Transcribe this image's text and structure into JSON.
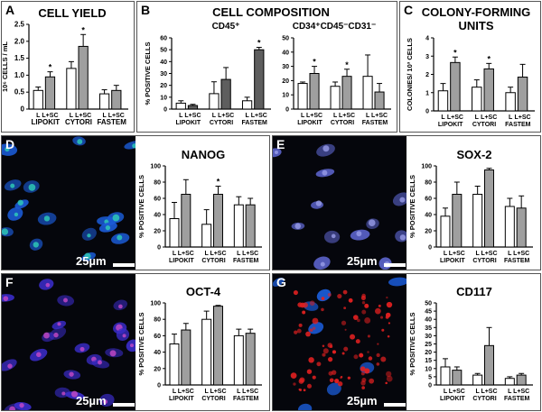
{
  "chart_data": [
    {
      "id": "A",
      "type": "bar",
      "title": "CELL YIELD",
      "ylabel": "10⁶ CELLS / mL",
      "ylim": [
        0,
        2.5
      ],
      "yticks": [
        0,
        0.5,
        1.0,
        1.5,
        2.0,
        2.5
      ],
      "groups": [
        "LIPOKIT",
        "CYTORI",
        "FASTEM"
      ],
      "series": [
        {
          "name": "L",
          "values": [
            0.55,
            1.2,
            0.45
          ],
          "err": [
            0.1,
            0.2,
            0.12
          ]
        },
        {
          "name": "L+SC",
          "values": [
            0.95,
            1.85,
            0.55
          ],
          "err": [
            0.15,
            0.35,
            0.15
          ]
        }
      ],
      "significant": [
        [
          false,
          true
        ],
        [
          false,
          true
        ],
        [
          false,
          false
        ]
      ]
    },
    {
      "id": "B1",
      "type": "bar",
      "title": "CD45⁺",
      "ylabel": "% POSITIVE CELLS",
      "ylim": [
        0,
        60
      ],
      "yticks": [
        0,
        10,
        20,
        30,
        40,
        50,
        60
      ],
      "groups": [
        "LIPOKIT",
        "CYTORI",
        "FASTEM"
      ],
      "series": [
        {
          "name": "L",
          "values": [
            5,
            13,
            7
          ],
          "err": [
            2,
            10,
            3
          ]
        },
        {
          "name": "L+SC",
          "values": [
            3,
            25,
            50
          ],
          "err": [
            1,
            10,
            2
          ]
        }
      ],
      "significant": [
        [
          false,
          false
        ],
        [
          false,
          false
        ],
        [
          false,
          true
        ]
      ]
    },
    {
      "id": "B2",
      "type": "bar",
      "title": "CD34⁺CD45⁻CD31⁻",
      "ylabel": "",
      "ylim": [
        0,
        50
      ],
      "yticks": [
        0,
        10,
        20,
        30,
        40,
        50
      ],
      "groups": [
        "LIPOKIT",
        "CYTORI",
        "FASTEM"
      ],
      "series": [
        {
          "name": "L",
          "values": [
            18,
            16,
            23
          ],
          "err": [
            1,
            3,
            15
          ]
        },
        {
          "name": "L+SC",
          "values": [
            25,
            23,
            12
          ],
          "err": [
            5,
            5,
            6
          ]
        }
      ],
      "significant": [
        [
          false,
          true
        ],
        [
          false,
          true
        ],
        [
          false,
          false
        ]
      ]
    },
    {
      "id": "C",
      "type": "bar",
      "title": "COLONY-FORMING UNITS",
      "ylabel": "COLONIES/ 10³ CELLS",
      "ylim": [
        0,
        4
      ],
      "yticks": [
        0,
        1,
        2,
        3,
        4
      ],
      "groups": [
        "LIPOKIT",
        "CYTORI",
        "FASTEM"
      ],
      "series": [
        {
          "name": "L",
          "values": [
            1.1,
            1.3,
            1.0
          ],
          "err": [
            0.4,
            0.4,
            0.3
          ]
        },
        {
          "name": "L+SC",
          "values": [
            2.65,
            2.3,
            1.85
          ],
          "err": [
            0.3,
            0.3,
            0.7
          ]
        }
      ],
      "significant": [
        [
          false,
          true
        ],
        [
          false,
          true
        ],
        [
          false,
          false
        ]
      ]
    },
    {
      "id": "D",
      "type": "bar",
      "title": "NANOG",
      "ylabel": "% POSITIVE CELLS",
      "ylim": [
        0,
        100
      ],
      "yticks": [
        0,
        20,
        40,
        60,
        80,
        100
      ],
      "groups": [
        "LIPOKIT",
        "CYTORI",
        "FASTEM"
      ],
      "series": [
        {
          "name": "L",
          "values": [
            35,
            28,
            52
          ],
          "err": [
            20,
            18,
            10
          ]
        },
        {
          "name": "L+SC",
          "values": [
            65,
            65,
            52
          ],
          "err": [
            18,
            10,
            8
          ]
        }
      ],
      "significant": [
        [
          false,
          false
        ],
        [
          false,
          true
        ],
        [
          false,
          false
        ]
      ]
    },
    {
      "id": "E",
      "type": "bar",
      "title": "SOX-2",
      "ylabel": "% POSITIVE CELLS",
      "ylim": [
        0,
        100
      ],
      "yticks": [
        0,
        20,
        40,
        60,
        80,
        100
      ],
      "groups": [
        "LIPOKIT",
        "CYTORI",
        "FASTEM"
      ],
      "series": [
        {
          "name": "L",
          "values": [
            38,
            65,
            50
          ],
          "err": [
            10,
            10,
            10
          ]
        },
        {
          "name": "L+SC",
          "values": [
            65,
            95,
            48
          ],
          "err": [
            15,
            2,
            15
          ]
        }
      ],
      "significant": [
        [
          false,
          false
        ],
        [
          false,
          false
        ],
        [
          false,
          false
        ]
      ]
    },
    {
      "id": "F",
      "type": "bar",
      "title": "OCT-4",
      "ylabel": "% POSITIVE CELLS",
      "ylim": [
        0,
        100
      ],
      "yticks": [
        0,
        20,
        40,
        60,
        80,
        100
      ],
      "groups": [
        "LIPOKIT",
        "CYTORI",
        "FASTEM"
      ],
      "series": [
        {
          "name": "L",
          "values": [
            50,
            80,
            60
          ],
          "err": [
            12,
            10,
            8
          ]
        },
        {
          "name": "L+SC",
          "values": [
            67,
            96,
            63
          ],
          "err": [
            8,
            1,
            5
          ]
        }
      ],
      "significant": [
        [
          false,
          false
        ],
        [
          false,
          false
        ],
        [
          false,
          false
        ]
      ]
    },
    {
      "id": "G",
      "type": "bar",
      "title": "CD117",
      "ylabel": "% POSITIVE CELLS",
      "ylim": [
        0,
        50
      ],
      "yticks": [
        0,
        5,
        10,
        15,
        20,
        25,
        30,
        35,
        40,
        45,
        50
      ],
      "groups": [
        "LIPOKIT",
        "CYTORI",
        "FASTEM"
      ],
      "series": [
        {
          "name": "L",
          "values": [
            11,
            6,
            4
          ],
          "err": [
            5,
            1,
            1
          ]
        },
        {
          "name": "L+SC",
          "values": [
            9,
            24,
            6
          ],
          "err": [
            2,
            11,
            1
          ]
        }
      ],
      "significant": [
        [
          false,
          false
        ],
        [
          false,
          false
        ],
        [
          false,
          false
        ]
      ]
    }
  ],
  "panels": {
    "A": "A",
    "B": "B",
    "C": "C",
    "D": "D",
    "E": "E",
    "F": "F",
    "G": "G",
    "B_title": "CELL COMPOSITION",
    "C_title_line1": "COLONY-FORMING",
    "C_title_line2": "UNITS"
  },
  "scale_bar_text": "25µm",
  "significance_marker": "*",
  "colors": {
    "bar_L": "#ffffff",
    "bar_LSC": "#9a9a9a",
    "bar_B1_LSC": "#555555",
    "outline": "#000000",
    "dapi": "#1b5bd6",
    "nanog": "#2fd0b8",
    "sox2": "#9a9ee8",
    "oct4": "#c84ac8",
    "cd117": "#e02020"
  }
}
